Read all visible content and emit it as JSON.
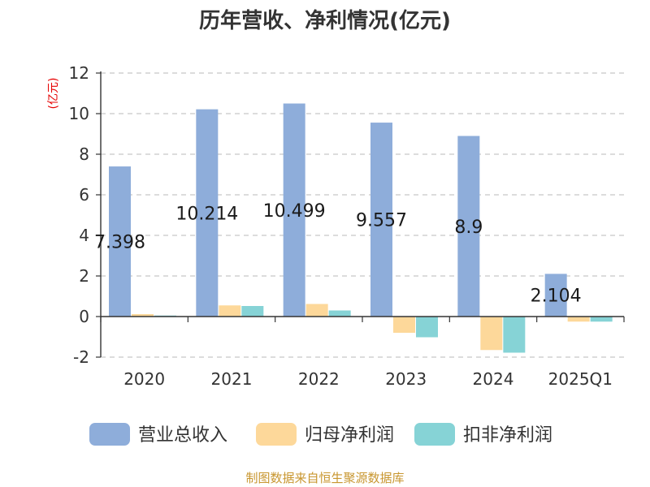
{
  "chart_data": {
    "type": "bar",
    "title": "历年营收、净利情况(亿元)",
    "ylabel": "(亿元)",
    "xlabel": "",
    "categories": [
      "2020",
      "2021",
      "2022",
      "2023",
      "2024",
      "2025Q1"
    ],
    "ylim": [
      -2,
      12
    ],
    "yticks": [
      -2,
      0,
      2,
      4,
      6,
      8,
      10,
      12
    ],
    "grid": true,
    "legend_position": "bottom",
    "series": [
      {
        "name": "营业总收入",
        "color": "#8eadda",
        "values": [
          7.398,
          10.214,
          10.499,
          9.557,
          8.9,
          2.104
        ],
        "data_labels": [
          "7.398",
          "10.214",
          "10.499",
          "9.557",
          "8.9",
          "2.104"
        ]
      },
      {
        "name": "归母净利润",
        "color": "#fdd89a",
        "values": [
          0.12,
          0.55,
          0.62,
          -0.8,
          -1.65,
          -0.25
        ]
      },
      {
        "name": "扣非净利润",
        "color": "#86d3d6",
        "values": [
          0.05,
          0.52,
          0.3,
          -1.02,
          -1.78,
          -0.25
        ]
      }
    ],
    "source": "制图数据来自恒生聚源数据库"
  }
}
